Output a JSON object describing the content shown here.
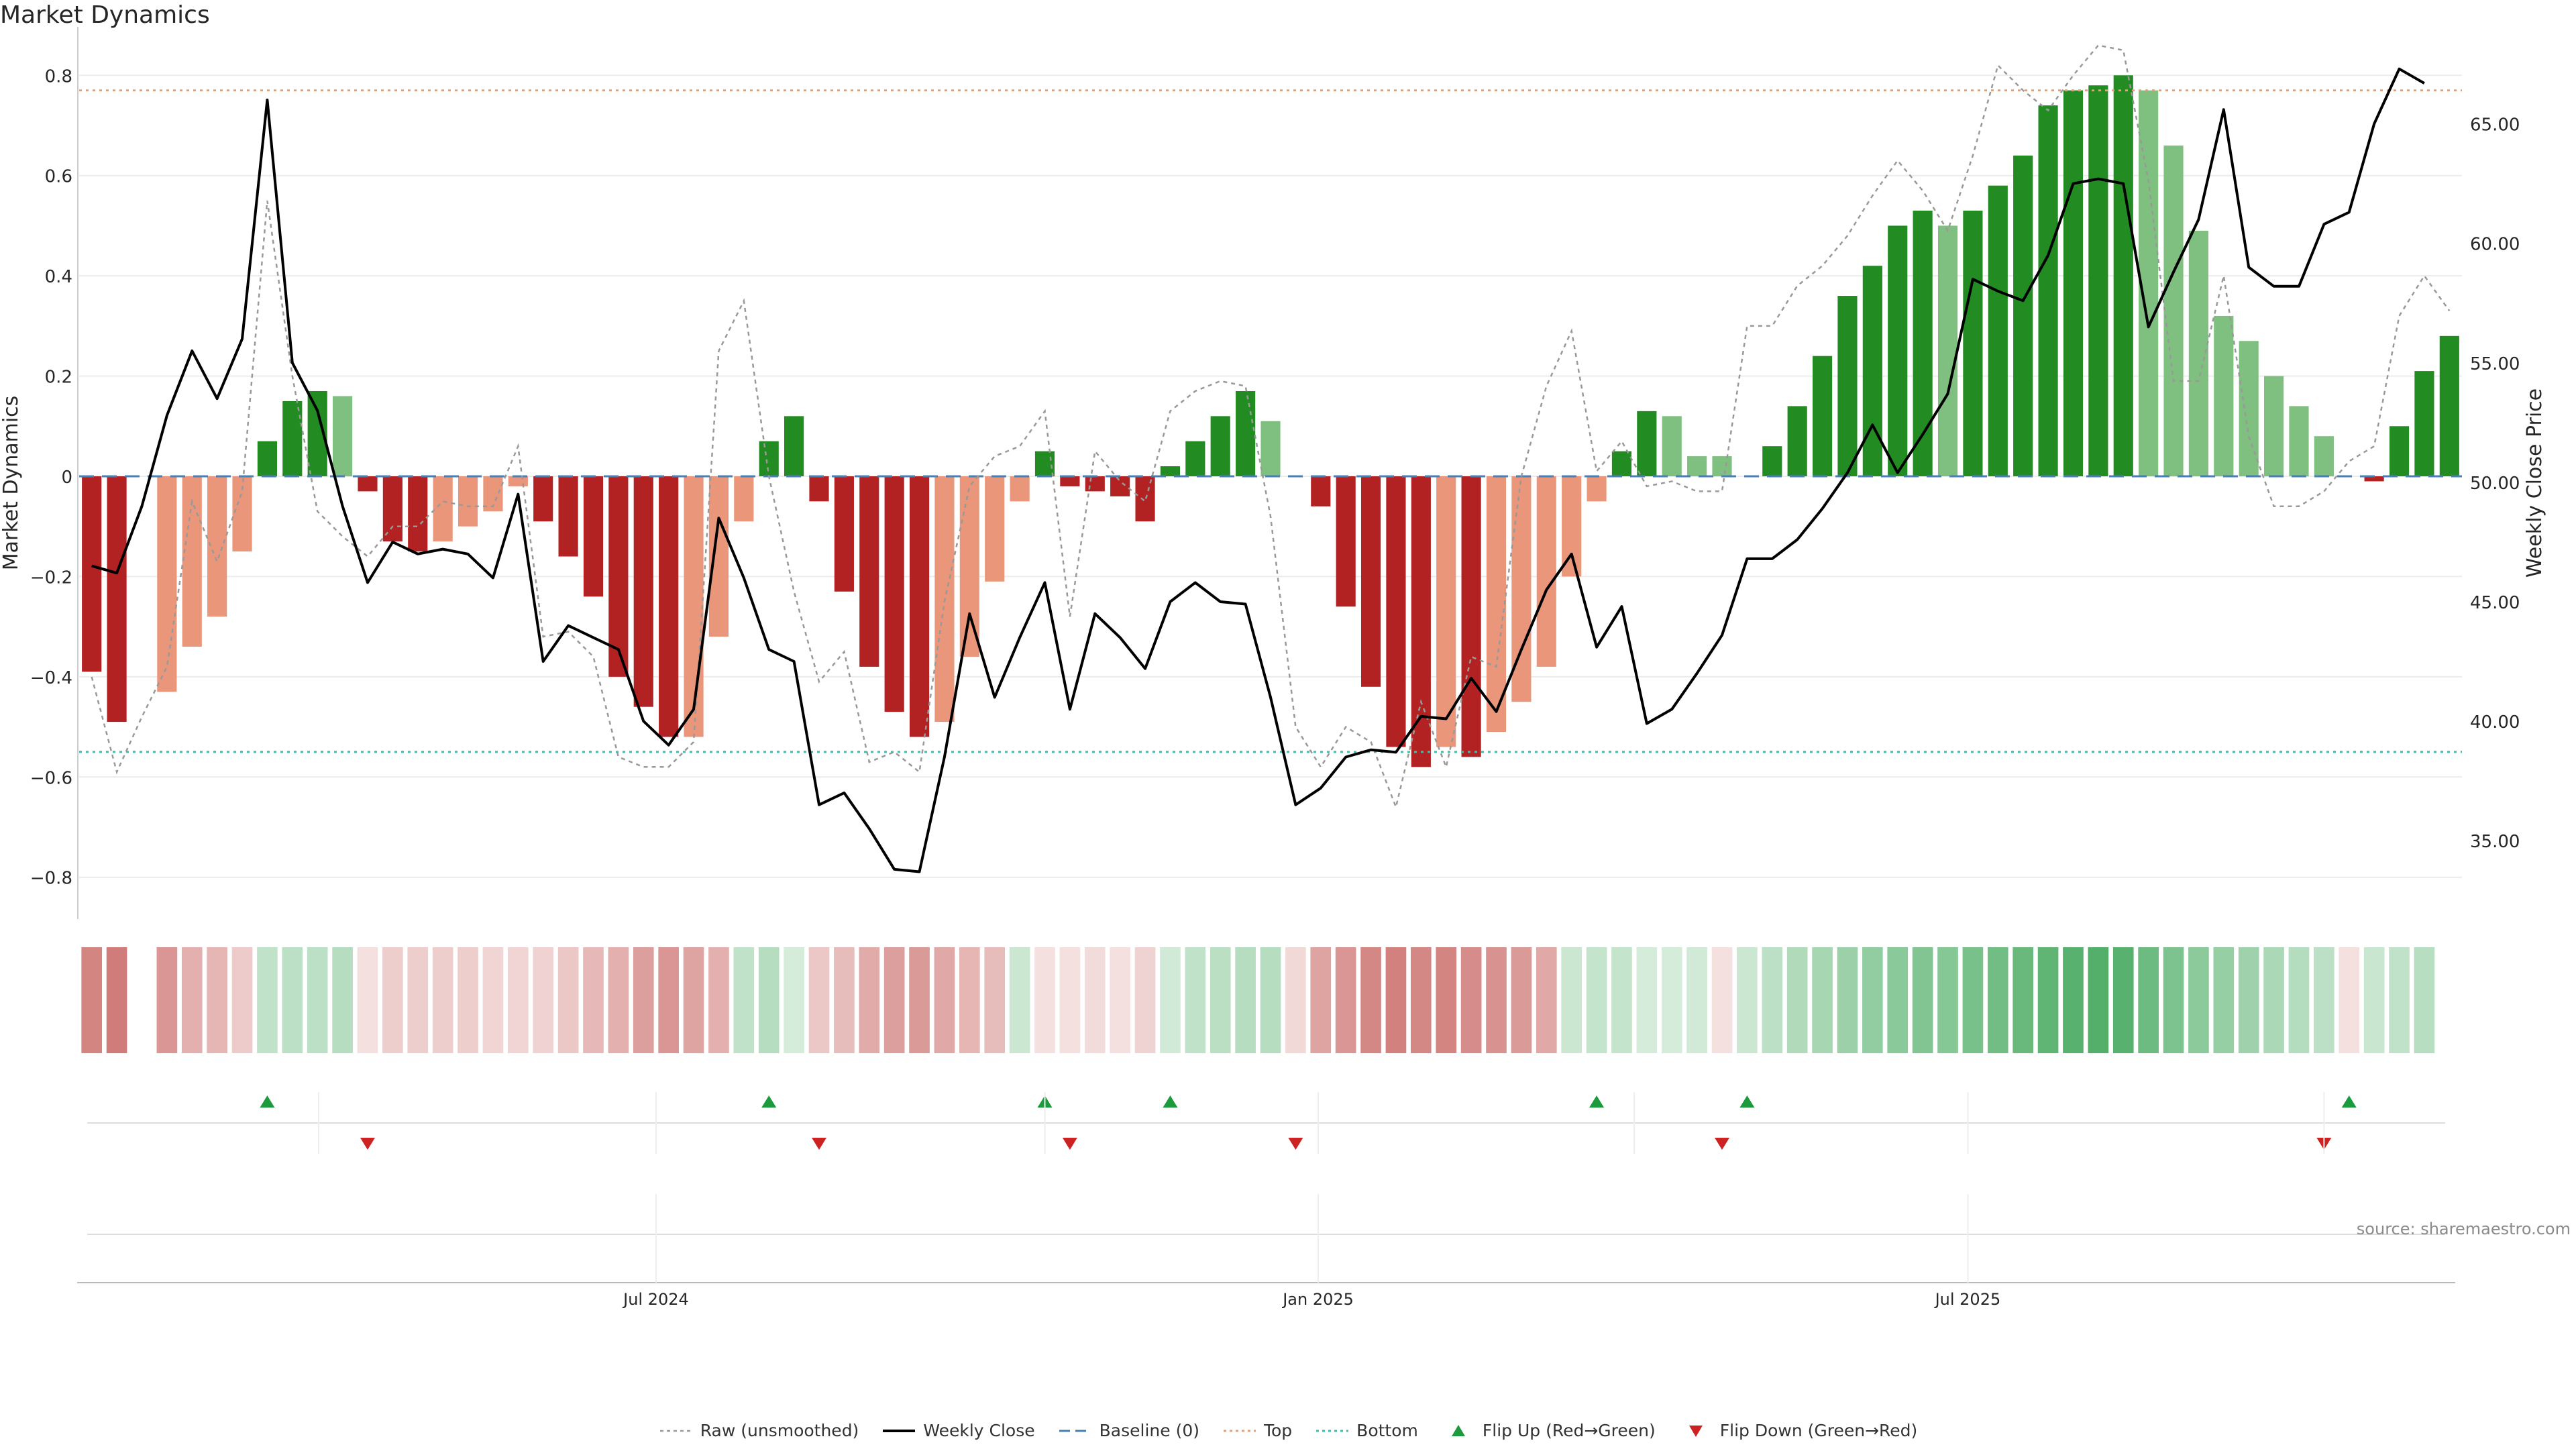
{
  "title": "Market Dynamics",
  "source": "source: sharemaestro.com",
  "colors": {
    "bar_dark_green": "#228b22",
    "bar_light_green": "#7fbf7f",
    "bar_dark_red": "#b22222",
    "bar_light_red": "#e9967a",
    "weekly_close": "#000000",
    "raw": "#999999",
    "baseline": "#4a7fb5",
    "top_line": "#e8a070",
    "bottom_line": "#3bbfb0",
    "flip_up": "#1e9a3e",
    "flip_down": "#cc2222",
    "grid": "#ececec",
    "heat_green": "#2e9e4a",
    "heat_red": "#c0504d"
  },
  "chart_data": {
    "type": "bar",
    "title": "Market Dynamics",
    "ylabel": "Market Dynamics",
    "y2label": "Weekly Close Price",
    "ylim": [
      -0.87,
      0.87
    ],
    "y2lim": [
      32.0,
      68.5
    ],
    "yticks": [
      "0.8",
      "0.6",
      "0.4",
      "0.2",
      "0",
      "−0.2",
      "−0.4",
      "−0.6",
      "−0.8"
    ],
    "ytick_values": [
      0.8,
      0.6,
      0.4,
      0.2,
      0,
      -0.2,
      -0.4,
      -0.6,
      -0.8
    ],
    "y2ticks": [
      "65.00",
      "60.00",
      "55.00",
      "50.00",
      "45.00",
      "40.00",
      "35.00"
    ],
    "y2tick_values": [
      65,
      60,
      55,
      50,
      45,
      40,
      35
    ],
    "x_index_range": [
      0,
      94
    ],
    "xticks": [
      {
        "label": "Jul 2024",
        "index": 22.5
      },
      {
        "label": "Jan 2025",
        "index": 48.9
      },
      {
        "label": "Jul 2025",
        "index": 74.8
      }
    ],
    "top_level": 0.77,
    "bottom_level": -0.55,
    "baseline_level": 0,
    "dynamics": [
      -0.39,
      -0.49,
      null,
      -0.43,
      -0.34,
      -0.28,
      -0.15,
      0.07,
      0.15,
      0.17,
      0.16,
      -0.03,
      -0.13,
      -0.15,
      -0.13,
      -0.1,
      -0.07,
      -0.02,
      -0.09,
      -0.16,
      -0.24,
      -0.4,
      -0.46,
      -0.52,
      -0.52,
      -0.32,
      -0.09,
      0.07,
      0.12,
      -0.05,
      -0.23,
      -0.38,
      -0.47,
      -0.52,
      -0.49,
      -0.36,
      -0.21,
      -0.05,
      0.05,
      -0.02,
      -0.03,
      -0.04,
      -0.09,
      0.02,
      0.07,
      0.12,
      0.17,
      0.11,
      0,
      -0.06,
      -0.26,
      -0.42,
      -0.54,
      -0.58,
      -0.54,
      -0.56,
      -0.51,
      -0.45,
      -0.38,
      -0.2,
      -0.05,
      0.05,
      0.13,
      0.12,
      0.04,
      0.04,
      0,
      0.06,
      0.14,
      0.24,
      0.36,
      0.42,
      0.5,
      0.53,
      0.5,
      0.53,
      0.58,
      0.64,
      0.74,
      0.77,
      0.78,
      0.8,
      0.77,
      0.66,
      0.49,
      0.32,
      0.27,
      0.2,
      0.14,
      0.08,
      0,
      -0.01,
      0.1,
      0.21,
      0.28
    ],
    "bar_colors": [
      "dark_red",
      "dark_red",
      null,
      "light_red",
      "light_red",
      "light_red",
      "light_red",
      "dark_green",
      "dark_green",
      "dark_green",
      "light_green",
      "dark_red",
      "dark_red",
      "dark_red",
      "light_red",
      "light_red",
      "light_red",
      "light_red",
      "dark_red",
      "dark_red",
      "dark_red",
      "dark_red",
      "dark_red",
      "dark_red",
      "light_red",
      "light_red",
      "light_red",
      "dark_green",
      "dark_green",
      "dark_red",
      "dark_red",
      "dark_red",
      "dark_red",
      "dark_red",
      "light_red",
      "light_red",
      "light_red",
      "light_red",
      "dark_green",
      "dark_red",
      "dark_red",
      "dark_red",
      "dark_red",
      "dark_green",
      "dark_green",
      "dark_green",
      "dark_green",
      "light_green",
      null,
      "dark_red",
      "dark_red",
      "dark_red",
      "dark_red",
      "dark_red",
      "light_red",
      "dark_red",
      "light_red",
      "light_red",
      "light_red",
      "light_red",
      "light_red",
      "dark_green",
      "dark_green",
      "light_green",
      "light_green",
      "light_green",
      null,
      "dark_green",
      "dark_green",
      "dark_green",
      "dark_green",
      "dark_green",
      "dark_green",
      "dark_green",
      "light_green",
      "dark_green",
      "dark_green",
      "dark_green",
      "dark_green",
      "dark_green",
      "dark_green",
      "dark_green",
      "light_green",
      "light_green",
      "light_green",
      "light_green",
      "light_green",
      "light_green",
      "light_green",
      "light_green",
      null,
      "dark_red",
      "dark_green",
      "dark_green",
      "dark_green"
    ],
    "weekly_close": [
      46.5,
      46.2,
      49.0,
      52.8,
      55.5,
      53.5,
      56.0,
      66.0,
      55.0,
      53.0,
      49.0,
      45.8,
      47.5,
      47.0,
      47.2,
      47.0,
      46.0,
      49.5,
      42.5,
      44.0,
      43.5,
      43.0,
      40.0,
      39.0,
      40.5,
      48.5,
      46.0,
      43.0,
      42.5,
      36.5,
      37.0,
      35.5,
      33.8,
      33.7,
      38.5,
      44.5,
      41.0,
      43.5,
      45.8,
      40.5,
      44.5,
      43.5,
      42.2,
      45.0,
      45.8,
      45.0,
      44.9,
      41.0,
      36.5,
      37.2,
      38.5,
      38.8,
      38.7,
      40.2,
      40.1,
      41.8,
      40.4,
      43.0,
      45.5,
      47.0,
      43.1,
      44.8,
      39.9,
      40.5,
      42.0,
      43.6,
      46.8,
      46.8,
      47.6,
      48.9,
      50.4,
      52.4,
      50.4,
      52.0,
      53.7,
      58.5,
      58.0,
      57.6,
      59.5,
      62.5,
      62.7,
      62.5,
      56.5,
      58.8,
      61.0,
      65.6,
      59.0,
      58.2,
      58.2,
      60.8,
      61.3,
      65.0,
      67.3,
      66.7
    ],
    "raw": [
      -0.4,
      -0.59,
      -0.48,
      -0.38,
      -0.05,
      -0.17,
      -0.03,
      0.55,
      0.2,
      -0.07,
      -0.12,
      -0.16,
      -0.1,
      -0.1,
      -0.05,
      -0.06,
      -0.06,
      0.06,
      -0.32,
      -0.31,
      -0.36,
      -0.56,
      -0.58,
      -0.58,
      -0.53,
      0.25,
      0.35,
      0.0,
      -0.23,
      -0.41,
      -0.35,
      -0.57,
      -0.55,
      -0.59,
      -0.25,
      -0.02,
      0.04,
      0.06,
      0.13,
      -0.28,
      0.05,
      -0.01,
      -0.05,
      0.13,
      0.17,
      0.19,
      0.18,
      -0.08,
      -0.5,
      -0.58,
      -0.5,
      -0.53,
      -0.66,
      -0.45,
      -0.58,
      -0.36,
      -0.38,
      0.0,
      0.18,
      0.29,
      0.01,
      0.07,
      -0.02,
      -0.01,
      -0.03,
      -0.03,
      0.3,
      0.3,
      0.38,
      0.42,
      0.48,
      0.56,
      0.63,
      0.57,
      0.49,
      0.64,
      0.82,
      0.77,
      0.73,
      0.8,
      0.86,
      0.85,
      0.59,
      0.19,
      0.19,
      0.4,
      0.08,
      -0.06,
      -0.06,
      -0.03,
      0.03,
      0.06,
      0.32,
      0.4,
      0.33
    ],
    "heatstrip": [
      -0.7,
      -0.75,
      null,
      -0.6,
      -0.45,
      -0.42,
      -0.3,
      0.3,
      0.32,
      0.32,
      0.35,
      -0.18,
      -0.28,
      -0.28,
      -0.28,
      -0.28,
      -0.24,
      -0.24,
      -0.26,
      -0.32,
      -0.4,
      -0.45,
      -0.55,
      -0.6,
      -0.52,
      -0.45,
      0.3,
      0.35,
      0.2,
      -0.32,
      -0.38,
      -0.48,
      -0.55,
      -0.58,
      -0.5,
      -0.42,
      -0.38,
      0.25,
      -0.18,
      -0.18,
      -0.2,
      -0.18,
      -0.25,
      0.22,
      0.3,
      0.33,
      0.35,
      0.35,
      -0.22,
      -0.52,
      -0.6,
      -0.68,
      -0.72,
      -0.68,
      -0.7,
      -0.66,
      -0.62,
      -0.58,
      -0.5,
      0.25,
      0.28,
      0.28,
      0.2,
      0.2,
      0.22,
      -0.15,
      0.25,
      0.32,
      0.38,
      0.42,
      0.48,
      0.52,
      0.56,
      0.6,
      0.58,
      0.64,
      0.68,
      0.72,
      0.76,
      0.8,
      0.82,
      0.8,
      0.7,
      0.62,
      0.55,
      0.5,
      0.46,
      0.4,
      0.36,
      0.32,
      -0.15,
      0.26,
      0.3,
      0.34
    ],
    "flip_up_index": [
      7,
      27,
      38,
      43,
      60,
      66,
      90
    ],
    "flip_down_index": [
      11,
      29,
      39,
      48,
      65,
      89
    ],
    "legend": [
      {
        "label": "Raw (unsmoothed)",
        "style": "dotted-gray"
      },
      {
        "label": "Weekly Close",
        "style": "solid-black"
      },
      {
        "label": "Baseline (0)",
        "style": "dashed-blue"
      },
      {
        "label": "Top",
        "style": "dotted-orange"
      },
      {
        "label": "Bottom",
        "style": "dotted-teal"
      },
      {
        "label": "Flip Up (Red→Green)",
        "style": "triangle-up-green"
      },
      {
        "label": "Flip Down (Green→Red)",
        "style": "triangle-down-red"
      }
    ]
  }
}
